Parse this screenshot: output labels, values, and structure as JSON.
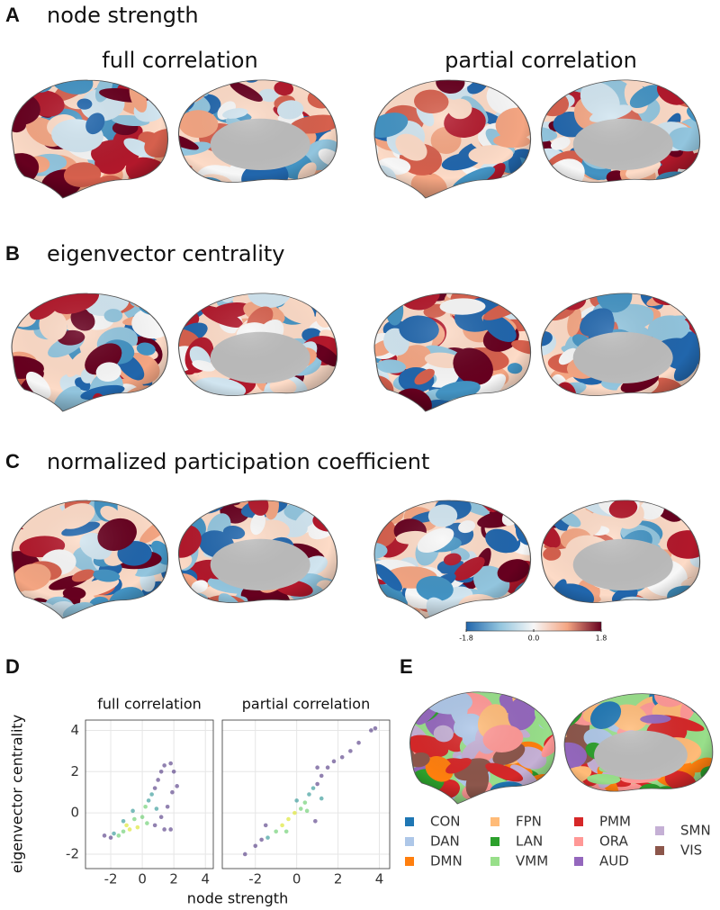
{
  "panels": [
    {
      "label": "A",
      "title": "node strength"
    },
    {
      "label": "B",
      "title": "eigenvector centrality"
    },
    {
      "label": "C",
      "title": "normalized participation coefficient"
    }
  ],
  "columns": [
    "full correlation",
    "partial correlation"
  ],
  "colorbar": {
    "lim": [
      -1.8,
      1.8
    ],
    "ticks": [
      -1.8,
      {
        "value": 0,
        "label": "0.0"
      },
      1.8
    ]
  },
  "panel_d": {
    "label": "D",
    "xlabel": "node strength",
    "ylabel": "eigenvector centrality"
  },
  "chart_data": [
    {
      "type": "scatter",
      "title": "full correlation",
      "x": [
        -2.4,
        -2.0,
        -1.8,
        -1.5,
        -1.2,
        -1.0,
        -0.8,
        -0.5,
        -0.3,
        0,
        0.2,
        0.4,
        0.6,
        0.8,
        1.0,
        1.2,
        1.4,
        1.8,
        2.0,
        1.9,
        1.6,
        1.2,
        0.8,
        1.4,
        1.8,
        -0.6,
        0.3,
        -1.2,
        0.9,
        2.2
      ],
      "values": [
        -1.1,
        -1.2,
        -1.0,
        -1.1,
        -0.9,
        -0.6,
        -0.8,
        -0.3,
        -0.7,
        -0.2,
        0.3,
        0.6,
        0.9,
        1.2,
        1.6,
        2.0,
        2.3,
        2.4,
        2.0,
        1.0,
        0.3,
        -0.2,
        -0.6,
        -0.8,
        -0.8,
        0.1,
        -0.5,
        -0.4,
        0.2,
        1.3
      ],
      "colors": [
        "#472d7b",
        "#472d7b",
        "#21908d",
        "#5ec962",
        "#5ec962",
        "#d8e219",
        "#d8e219",
        "#5ec962",
        "#d8e219",
        "#5ec962",
        "#5ec962",
        "#21908d",
        "#21908d",
        "#472d7b",
        "#472d7b",
        "#472d7b",
        "#472d7b",
        "#472d7b",
        "#472d7b",
        "#472d7b",
        "#472d7b",
        "#472d7b",
        "#472d7b",
        "#472d7b",
        "#472d7b",
        "#21908d",
        "#5ec962",
        "#21908d",
        "#21908d",
        "#472d7b"
      ],
      "xlim": [
        -3.6,
        4.5
      ],
      "ylim": [
        -2.7,
        4.5
      ],
      "xticks": [
        -2,
        0,
        2,
        4
      ],
      "yticks": [
        -2,
        0,
        2,
        4
      ]
    },
    {
      "type": "scatter",
      "title": "partial correlation",
      "x": [
        -2.5,
        -2.0,
        -1.7,
        -1.4,
        -1.0,
        -0.7,
        -0.4,
        -0.1,
        0.2,
        0.4,
        0.6,
        0.8,
        1.0,
        1.2,
        1.5,
        1.8,
        2.2,
        2.6,
        3.0,
        3.6,
        3.8,
        -0.5,
        0.5,
        1.2,
        0.9,
        -1.5,
        0.0,
        1.0
      ],
      "values": [
        -2.0,
        -1.6,
        -1.3,
        -1.2,
        -0.9,
        -0.6,
        -0.3,
        0,
        0.2,
        0.5,
        0.9,
        1.2,
        1.4,
        1.8,
        2.2,
        2.5,
        2.7,
        3.0,
        3.4,
        4.0,
        4.1,
        -0.9,
        0.1,
        0.7,
        -0.4,
        -0.6,
        0.6,
        2.2
      ],
      "colors": [
        "#472d7b",
        "#472d7b",
        "#472d7b",
        "#21908d",
        "#5ec962",
        "#d8e219",
        "#d8e219",
        "#d8e219",
        "#5ec962",
        "#5ec962",
        "#21908d",
        "#21908d",
        "#472d7b",
        "#472d7b",
        "#472d7b",
        "#472d7b",
        "#472d7b",
        "#472d7b",
        "#472d7b",
        "#472d7b",
        "#472d7b",
        "#5ec962",
        "#5ec962",
        "#21908d",
        "#472d7b",
        "#472d7b",
        "#21908d",
        "#472d7b"
      ],
      "xlim": [
        -3.6,
        4.5
      ],
      "ylim": [
        -2.7,
        4.5
      ],
      "xticks": [
        -2,
        0,
        2,
        4
      ]
    }
  ],
  "panel_e": {
    "label": "E",
    "legend": [
      {
        "name": "CON",
        "color": "#1f77b4"
      },
      {
        "name": "DAN",
        "color": "#aec7e8"
      },
      {
        "name": "DMN",
        "color": "#ff7f0e"
      },
      {
        "name": "FPN",
        "color": "#ffbb78"
      },
      {
        "name": "LAN",
        "color": "#2ca02c"
      },
      {
        "name": "VMM",
        "color": "#98df8a"
      },
      {
        "name": "PMM",
        "color": "#d62728"
      },
      {
        "name": "ORA",
        "color": "#ff9896"
      },
      {
        "name": "AUD",
        "color": "#9467bd"
      },
      {
        "name": "SMN",
        "color": "#c5b0d5"
      },
      {
        "name": "VIS",
        "color": "#8c564b"
      }
    ]
  }
}
